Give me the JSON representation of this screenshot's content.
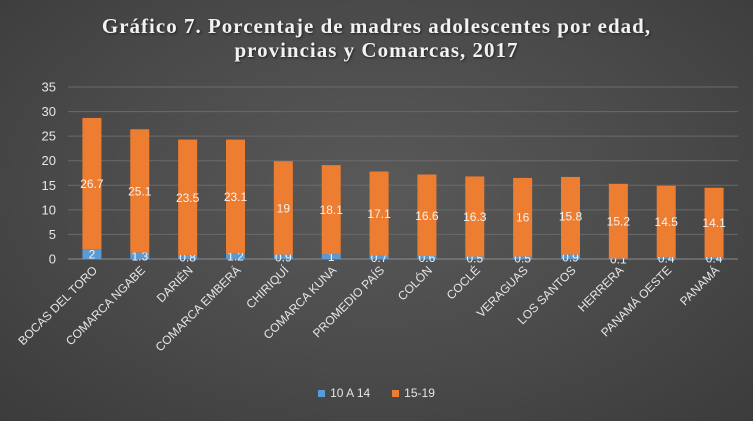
{
  "chart_data": {
    "type": "bar",
    "stacked": true,
    "title_lines": [
      "Gráfico 7. Porcentaje de madres adolescentes por edad,",
      "provincias y Comarcas, 2017"
    ],
    "categories": [
      "BOCAS DEL TORO",
      "COMARCA NGABE",
      "DARIÉN",
      "COMARCA EMBERÁ",
      "CHIRIQUÍ",
      "COMARCA KUNA",
      "PROMEDIO PAÍS",
      "COLÓN",
      "COCLÉ",
      "VERAGUAS",
      "LOS SANTOS",
      "HERRERA",
      "PANAMÁ OESTE",
      "PANAMÁ"
    ],
    "series": [
      {
        "name": "10 A 14",
        "color": "#5b9bd5",
        "values": [
          2,
          1.3,
          0.8,
          1.2,
          0.9,
          1,
          0.7,
          0.6,
          0.5,
          0.5,
          0.9,
          0.1,
          0.4,
          0.4
        ]
      },
      {
        "name": "15-19",
        "color": "#ed7d31",
        "values": [
          26.7,
          25.1,
          23.5,
          23.1,
          19,
          18.1,
          17.1,
          16.6,
          16.3,
          16,
          15.8,
          15.2,
          14.5,
          14.1
        ]
      }
    ],
    "ylim": [
      0,
      35
    ],
    "yticks": [
      0,
      5,
      10,
      15,
      20,
      25,
      30,
      35
    ],
    "grid": true,
    "legend_position": "bottom"
  }
}
